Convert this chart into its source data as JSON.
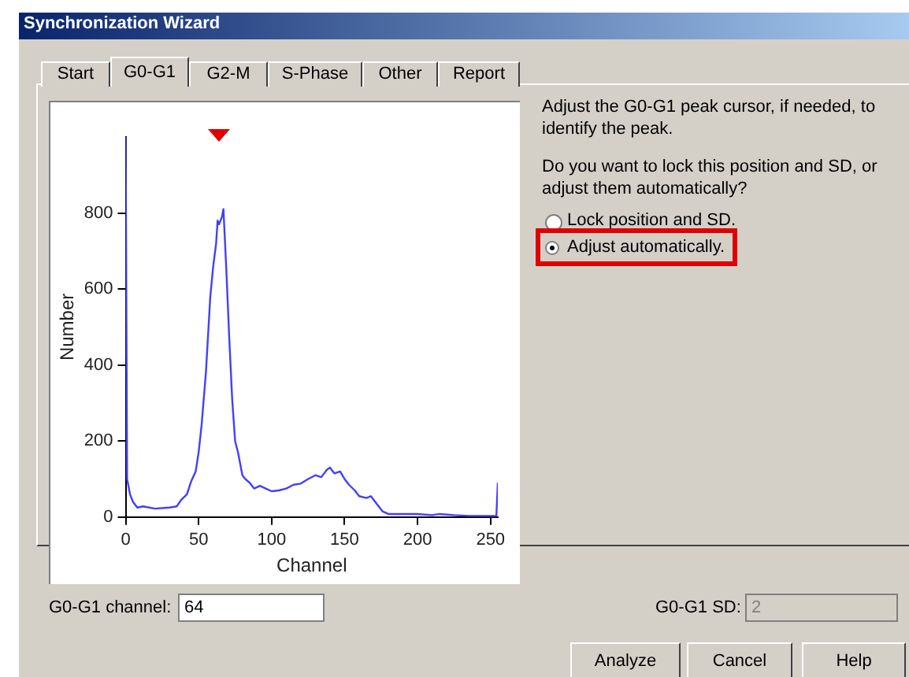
{
  "chart_data": {
    "type": "line",
    "xlabel": "Channel",
    "ylabel": "Number",
    "x": [
      0,
      1,
      3,
      5,
      8,
      12,
      20,
      30,
      35,
      38,
      42,
      45,
      48,
      50,
      52,
      55,
      58,
      60,
      62,
      63,
      64,
      66,
      67,
      69,
      71,
      73,
      75,
      77,
      80,
      82,
      85,
      88,
      92,
      96,
      100,
      105,
      110,
      115,
      120,
      125,
      130,
      134,
      138,
      140,
      143,
      147,
      150,
      153,
      157,
      160,
      165,
      168,
      172,
      176,
      180,
      190,
      200,
      210,
      215,
      225,
      235,
      245,
      254,
      255
    ],
    "series": [
      {
        "color": "#4040ff",
        "values": [
          1000,
          100,
          60,
          40,
          25,
          28,
          22,
          25,
          28,
          45,
          60,
          95,
          120,
          170,
          240,
          380,
          580,
          660,
          720,
          780,
          770,
          790,
          810,
          650,
          470,
          310,
          200,
          170,
          110,
          100,
          90,
          75,
          82,
          75,
          68,
          70,
          75,
          85,
          88,
          100,
          110,
          105,
          125,
          130,
          115,
          120,
          100,
          85,
          70,
          55,
          50,
          55,
          35,
          15,
          8,
          8,
          8,
          5,
          8,
          5,
          3,
          3,
          3,
          90
        ]
      }
    ],
    "xlim": [
      0,
      255
    ],
    "xticks": [
      0,
      50,
      100,
      150,
      200,
      250
    ],
    "ylim": [
      0,
      1000
    ],
    "yticks": [
      0,
      200,
      400,
      600,
      800
    ],
    "grid": false,
    "legend": false,
    "marker": "none",
    "line_style": "solid",
    "annotations": [
      "Synchronization Wizard",
      "Start",
      "G0-G1",
      "G2-M",
      "S-Phase",
      "Other",
      "Report",
      "Adjust the G0-G1 peak cursor, if needed, to identify the peak.",
      "Do you want to lock this position and SD, or adjust them automatically?",
      "Lock position and SD.",
      "Adjust automatically.",
      "G0-G1 channel:",
      "64",
      "G0-G1 SD:",
      "2",
      "Analyze",
      "Cancel",
      "Help"
    ]
  }
}
